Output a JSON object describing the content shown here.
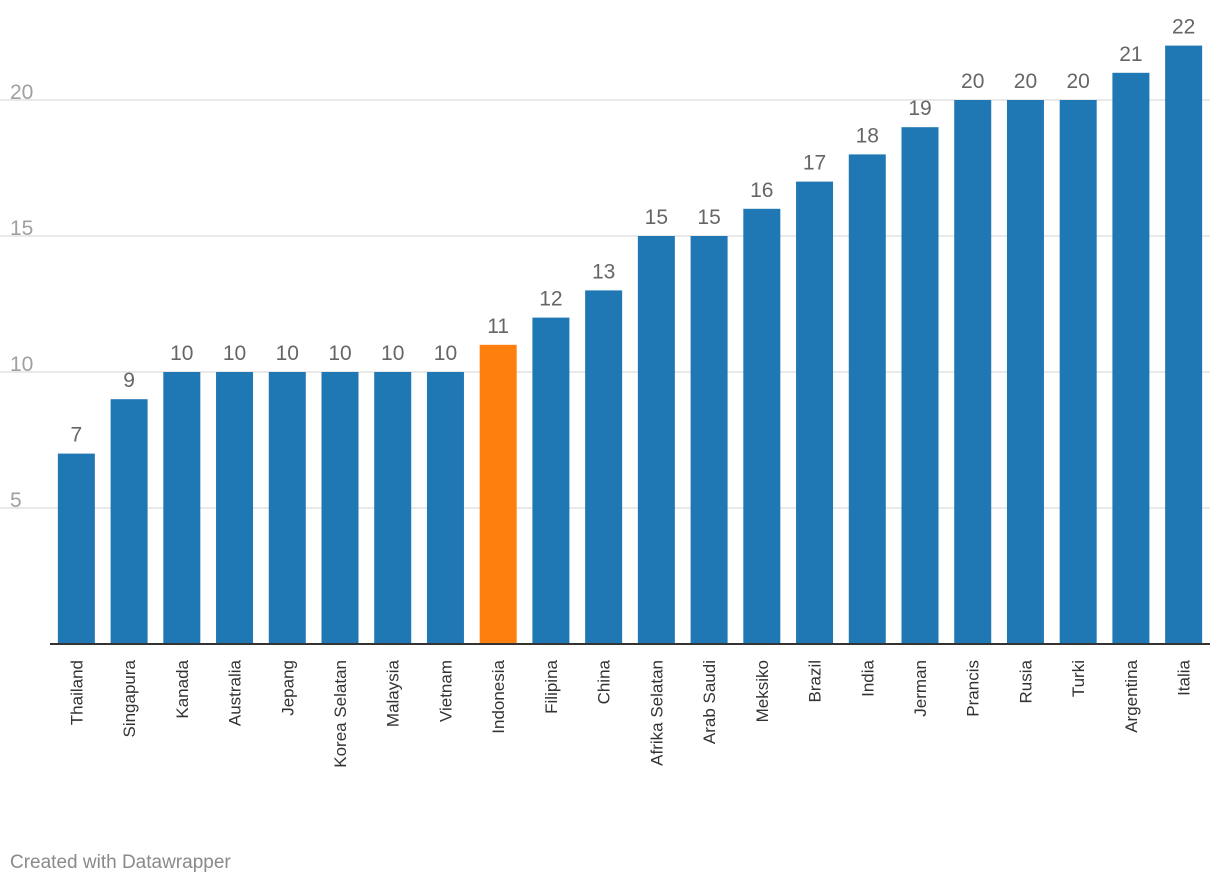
{
  "chart_data": {
    "type": "bar",
    "categories": [
      "Thailand",
      "Singapura",
      "Kanada",
      "Australia",
      "Jepang",
      "Korea Selatan",
      "Malaysia",
      "Vietnam",
      "Indonesia",
      "Filipina",
      "China",
      "Afrika Selatan",
      "Arab Saudi",
      "Meksiko",
      "Brazil",
      "India",
      "Jerman",
      "Prancis",
      "Rusia",
      "Turki",
      "Argentina",
      "Italia"
    ],
    "values": [
      7,
      9,
      10,
      10,
      10,
      10,
      10,
      10,
      11,
      12,
      13,
      15,
      15,
      16,
      17,
      18,
      19,
      20,
      20,
      20,
      21,
      22
    ],
    "highlight": "Indonesia",
    "yticks": [
      5,
      10,
      15,
      20
    ],
    "ylim": [
      0,
      22
    ],
    "grid": true,
    "title": "",
    "xlabel": "",
    "ylabel": ""
  },
  "colors": {
    "bar": "#1f77b4",
    "highlight": "#ff7f0e",
    "grid": "#e2e2e2",
    "axis": "#333333"
  },
  "footer": {
    "credit": "Created with Datawrapper"
  }
}
